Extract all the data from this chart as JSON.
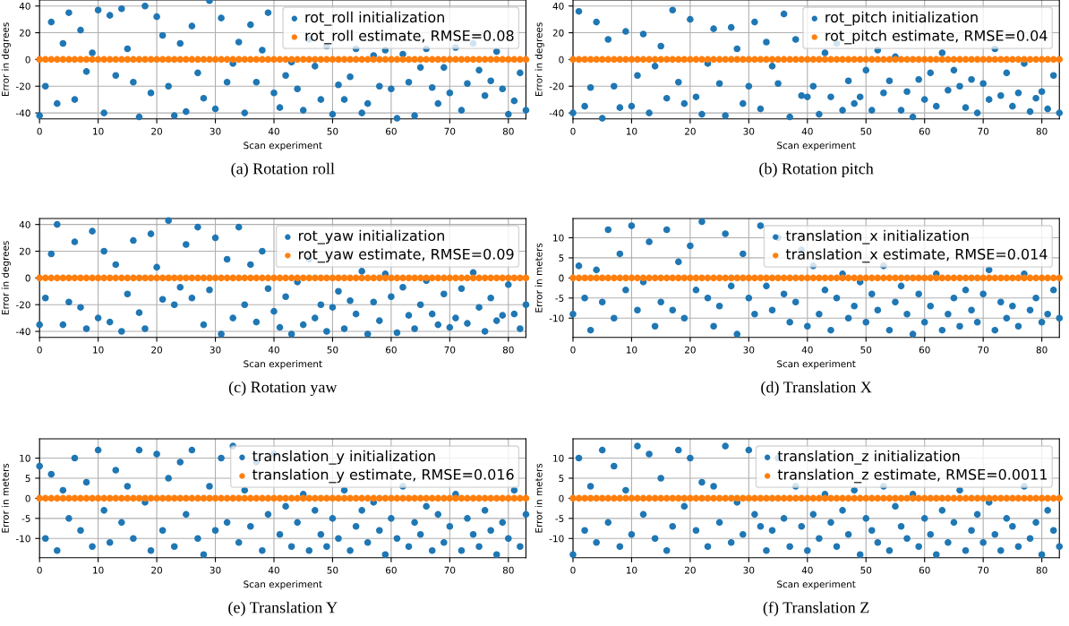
{
  "chart_data": [
    {
      "type": "scatter",
      "xlabel": "Scan experiment",
      "ylabel": "Error in degrees",
      "xlim": [
        0,
        83
      ],
      "ylim": [
        -44.5,
        44.5
      ],
      "xticks": [
        0,
        10,
        20,
        30,
        40,
        50,
        60,
        70,
        80
      ],
      "yticks": [
        -40,
        -20,
        0,
        20,
        40
      ],
      "grid": true,
      "legend": "top right",
      "marker": "circle",
      "annotations": [
        "(a) Rotation roll"
      ],
      "x": [
        0,
        1,
        2,
        3,
        4,
        5,
        6,
        7,
        8,
        9,
        10,
        11,
        12,
        13,
        14,
        15,
        16,
        17,
        18,
        19,
        20,
        21,
        22,
        23,
        24,
        25,
        26,
        27,
        28,
        29,
        30,
        31,
        32,
        33,
        34,
        35,
        36,
        37,
        38,
        39,
        40,
        41,
        42,
        43,
        44,
        45,
        46,
        47,
        48,
        49,
        50,
        51,
        52,
        53,
        54,
        55,
        56,
        57,
        58,
        59,
        60,
        61,
        62,
        63,
        64,
        65,
        66,
        67,
        68,
        69,
        70,
        71,
        72,
        73,
        74,
        75,
        76,
        77,
        78,
        79,
        80,
        81,
        82,
        83
      ],
      "series": [
        {
          "name": "rot_roll initialization",
          "color": "#1f77b4",
          "values": [
            -42,
            -20,
            28,
            -33,
            12,
            35,
            -30,
            22,
            -9,
            5,
            37,
            -40,
            33,
            -12,
            38,
            8,
            -17,
            -43,
            40,
            -25,
            32,
            18,
            -20,
            -42,
            12,
            -39,
            25,
            -10,
            -29,
            44,
            -37,
            31,
            -17,
            -3,
            13,
            -40,
            26,
            -17,
            7,
            35,
            -25,
            -36,
            -12,
            -2,
            -22,
            -38,
            15,
            -5,
            -30,
            10,
            -41,
            -19,
            -30,
            -13,
            8,
            -40,
            -33,
            3,
            -20,
            7,
            -22,
            -44,
            4,
            -17,
            -42,
            -6,
            8,
            -21,
            -33,
            -6,
            -25,
            9,
            -38,
            -18,
            12,
            -8,
            -27,
            -16,
            6,
            -22,
            -41,
            -31,
            -10,
            -38
          ]
        },
        {
          "name": "rot_roll estimate, RMSE=0.08",
          "color": "#ff7f0e",
          "values": [
            0,
            0,
            0,
            0,
            0,
            0,
            0,
            0,
            0,
            0,
            0,
            0,
            0,
            0,
            0,
            0,
            0,
            0,
            0,
            0,
            0,
            0,
            0,
            0,
            0,
            0,
            0,
            0,
            0,
            0,
            0,
            0,
            0,
            0,
            0,
            0,
            0,
            0,
            0,
            0,
            0,
            0,
            0,
            0,
            0,
            0,
            0,
            0,
            0,
            0,
            0,
            0,
            0,
            0,
            0,
            0,
            0,
            0,
            0,
            0,
            0,
            0,
            0,
            0,
            0,
            0,
            0,
            0,
            0,
            0,
            0,
            0,
            0,
            0,
            0,
            0,
            0,
            0,
            0,
            0,
            0,
            0,
            0,
            0
          ]
        }
      ]
    },
    {
      "type": "scatter",
      "xlabel": "Scan experiment",
      "ylabel": "Error in degrees",
      "xlim": [
        0,
        83
      ],
      "ylim": [
        -44.5,
        44.5
      ],
      "xticks": [
        0,
        10,
        20,
        30,
        40,
        50,
        60,
        70,
        80
      ],
      "yticks": [
        -40,
        -20,
        0,
        20,
        40
      ],
      "grid": true,
      "legend": "top right",
      "marker": "circle",
      "annotations": [
        "(b) Rotation pitch"
      ],
      "x": [
        0,
        1,
        2,
        3,
        4,
        5,
        6,
        7,
        8,
        9,
        10,
        11,
        12,
        13,
        14,
        15,
        16,
        17,
        18,
        19,
        20,
        21,
        22,
        23,
        24,
        25,
        26,
        27,
        28,
        29,
        30,
        31,
        32,
        33,
        34,
        35,
        36,
        37,
        38,
        39,
        40,
        41,
        42,
        43,
        44,
        45,
        46,
        47,
        48,
        49,
        50,
        51,
        52,
        53,
        54,
        55,
        56,
        57,
        58,
        59,
        60,
        61,
        62,
        63,
        64,
        65,
        66,
        67,
        68,
        69,
        70,
        71,
        72,
        73,
        74,
        75,
        76,
        77,
        78,
        79,
        80,
        81,
        82,
        83
      ],
      "series": [
        {
          "name": "rot_pitch initialization",
          "color": "#1f77b4",
          "values": [
            -40,
            36,
            -35,
            -21,
            28,
            -44,
            15,
            -20,
            -36,
            21,
            -35,
            -12,
            19,
            -40,
            -5,
            10,
            -29,
            37,
            -17,
            -33,
            30,
            -28,
            -41,
            -3,
            23,
            -18,
            -42,
            24,
            8,
            -33,
            -20,
            28,
            -37,
            13,
            -5,
            -18,
            34,
            -43,
            15,
            -27,
            -28,
            -20,
            -41,
            5,
            -28,
            12,
            -38,
            -16,
            -33,
            -28,
            -8,
            -38,
            7,
            -25,
            -16,
            2,
            -38,
            -24,
            -43,
            -15,
            -30,
            -10,
            -35,
            5,
            -23,
            -8,
            -20,
            -36,
            -15,
            -40,
            -18,
            -30,
            8,
            -27,
            -10,
            -35,
            -25,
            -3,
            -39,
            -29,
            -24,
            -37,
            -12,
            -40
          ]
        },
        {
          "name": "rot_pitch estimate, RMSE=0.04",
          "color": "#ff7f0e",
          "values": [
            0,
            0,
            0,
            0,
            0,
            0,
            0,
            0,
            0,
            0,
            0,
            0,
            0,
            0,
            0,
            0,
            0,
            0,
            0,
            0,
            0,
            0,
            0,
            0,
            0,
            0,
            0,
            0,
            0,
            0,
            0,
            0,
            0,
            0,
            0,
            0,
            0,
            0,
            0,
            0,
            0,
            0,
            0,
            0,
            0,
            0,
            0,
            0,
            0,
            0,
            0,
            0,
            0,
            0,
            0,
            0,
            0,
            0,
            0,
            0,
            0,
            0,
            0,
            0,
            0,
            0,
            0,
            0,
            0,
            0,
            0,
            0,
            0,
            0,
            0,
            0,
            0,
            0,
            0,
            0,
            0,
            0,
            0,
            0
          ]
        }
      ]
    },
    {
      "type": "scatter",
      "xlabel": "Scan experiment",
      "ylabel": "Error in degrees",
      "xlim": [
        0,
        83
      ],
      "ylim": [
        -44.5,
        44.5
      ],
      "xticks": [
        0,
        10,
        20,
        30,
        40,
        50,
        60,
        70,
        80
      ],
      "yticks": [
        -40,
        -20,
        0,
        20,
        40
      ],
      "grid": true,
      "legend": "top right",
      "marker": "circle",
      "annotations": [
        "(c) Rotation yaw"
      ],
      "x": [
        0,
        1,
        2,
        3,
        4,
        5,
        6,
        7,
        8,
        9,
        10,
        11,
        12,
        13,
        14,
        15,
        16,
        17,
        18,
        19,
        20,
        21,
        22,
        23,
        24,
        25,
        26,
        27,
        28,
        29,
        30,
        31,
        32,
        33,
        34,
        35,
        36,
        37,
        38,
        39,
        40,
        41,
        42,
        43,
        44,
        45,
        46,
        47,
        48,
        49,
        50,
        51,
        52,
        53,
        54,
        55,
        56,
        57,
        58,
        59,
        60,
        61,
        62,
        63,
        64,
        65,
        66,
        67,
        68,
        69,
        70,
        71,
        72,
        73,
        74,
        75,
        76,
        77,
        78,
        79,
        80,
        81,
        82,
        83
      ],
      "series": [
        {
          "name": "rot_yaw initialization",
          "color": "#1f77b4",
          "values": [
            -35,
            -15,
            18,
            40,
            -35,
            -18,
            27,
            -22,
            -38,
            35,
            -30,
            20,
            -33,
            10,
            -40,
            -12,
            28,
            -26,
            -38,
            33,
            8,
            -16,
            43,
            -20,
            -7,
            25,
            -15,
            38,
            -35,
            -9,
            30,
            -42,
            14,
            -30,
            38,
            -20,
            10,
            -33,
            20,
            -8,
            -25,
            -37,
            -14,
            -42,
            -3,
            -35,
            14,
            -30,
            -20,
            -40,
            -22,
            -10,
            -38,
            -17,
            -27,
            5,
            -42,
            -18,
            -32,
            3,
            -14,
            -41,
            -7,
            -28,
            -38,
            -20,
            -2,
            -27,
            -35,
            -12,
            -37,
            -30,
            -8,
            -34,
            4,
            -22,
            -40,
            -15,
            -32,
            -28,
            -5,
            -27,
            -38,
            -20
          ]
        },
        {
          "name": "rot_yaw estimate, RMSE=0.09",
          "color": "#ff7f0e",
          "values": [
            0,
            0,
            0,
            0,
            0,
            0,
            0,
            0,
            0,
            0,
            0,
            0,
            0,
            0,
            0,
            0,
            0,
            0,
            0,
            0,
            0,
            0,
            0,
            0,
            0,
            0,
            0,
            0,
            0,
            0,
            0,
            0,
            0,
            0,
            0,
            0,
            0,
            0,
            0,
            0,
            0,
            0,
            0,
            0,
            0,
            0,
            0,
            0,
            0,
            0,
            0,
            0,
            0,
            0,
            0,
            0,
            0,
            0,
            0,
            0,
            0,
            0,
            0,
            0,
            0,
            0,
            0,
            0,
            0,
            0,
            0,
            0,
            0,
            0,
            0,
            0,
            0,
            0,
            0,
            0,
            0,
            0,
            0,
            0
          ]
        }
      ]
    },
    {
      "type": "scatter",
      "xlabel": "Scan experiment",
      "ylabel": "Error in meters",
      "xlim": [
        0,
        83
      ],
      "ylim": [
        -14.8,
        14.8
      ],
      "xticks": [
        0,
        10,
        20,
        30,
        40,
        50,
        60,
        70,
        80
      ],
      "yticks": [
        -10,
        -5,
        0,
        5,
        10
      ],
      "grid": true,
      "legend": "top right",
      "marker": "circle",
      "annotations": [
        "(d) Translation X"
      ],
      "x": [
        0,
        1,
        2,
        3,
        4,
        5,
        6,
        7,
        8,
        9,
        10,
        11,
        12,
        13,
        14,
        15,
        16,
        17,
        18,
        19,
        20,
        21,
        22,
        23,
        24,
        25,
        26,
        27,
        28,
        29,
        30,
        31,
        32,
        33,
        34,
        35,
        36,
        37,
        38,
        39,
        40,
        41,
        42,
        43,
        44,
        45,
        46,
        47,
        48,
        49,
        50,
        51,
        52,
        53,
        54,
        55,
        56,
        57,
        58,
        59,
        60,
        61,
        62,
        63,
        64,
        65,
        66,
        67,
        68,
        69,
        70,
        71,
        72,
        73,
        74,
        75,
        76,
        77,
        78,
        79,
        80,
        81,
        82,
        83
      ],
      "series": [
        {
          "name": "translation_x initialization",
          "color": "#1f77b4",
          "values": [
            -9,
            3,
            -5,
            -13,
            2,
            -6,
            12,
            -10,
            6,
            -3,
            13,
            -8,
            -1,
            9,
            -12,
            -6,
            12,
            -8,
            4,
            -10,
            8,
            -3,
            14,
            -5,
            -12,
            -7,
            11,
            -2,
            -14,
            6,
            -5,
            -9,
            13,
            -2,
            -8,
            10,
            -4,
            -11,
            -6,
            7,
            -12,
            3,
            -9,
            -3,
            -13,
            -5,
            1,
            -10,
            -7,
            -1,
            -11,
            -4,
            -8,
            3,
            -13,
            -6,
            -2,
            -9,
            -14,
            -4,
            -11,
            -7,
            1,
            -13,
            -9,
            -5,
            -12,
            -3,
            -8,
            -11,
            -4,
            2,
            -13,
            -6,
            -10,
            -7,
            -12,
            1,
            -8,
            -5,
            -11,
            -9,
            -3,
            -10
          ]
        },
        {
          "name": "translation_x estimate, RMSE=0.014",
          "color": "#ff7f0e",
          "values": [
            0,
            0,
            0,
            0,
            0,
            0,
            0,
            0,
            0,
            0,
            0,
            0,
            0,
            0,
            0,
            0,
            0,
            0,
            0,
            0,
            0,
            0,
            0,
            0,
            0,
            0,
            0,
            0,
            0,
            0,
            0,
            0,
            0,
            0,
            0,
            0,
            0,
            0,
            0,
            0,
            0,
            0,
            0,
            0,
            0,
            0,
            0,
            0,
            0,
            0,
            0,
            0,
            0,
            0,
            0,
            0,
            0,
            0,
            0,
            0,
            0,
            0,
            0,
            0,
            0,
            0,
            0,
            0,
            0,
            0,
            0,
            0,
            0,
            0,
            0,
            0,
            0,
            0,
            0,
            0,
            0,
            0,
            0,
            0
          ]
        }
      ]
    },
    {
      "type": "scatter",
      "xlabel": "Scan experiment",
      "ylabel": "Error in meters",
      "xlim": [
        0,
        83
      ],
      "ylim": [
        -14.8,
        14.8
      ],
      "xticks": [
        0,
        10,
        20,
        30,
        40,
        50,
        60,
        70,
        80
      ],
      "yticks": [
        -10,
        -5,
        0,
        5,
        10
      ],
      "grid": true,
      "legend": "top right",
      "marker": "circle",
      "annotations": [
        "(e) Translation Y"
      ],
      "x": [
        0,
        1,
        2,
        3,
        4,
        5,
        6,
        7,
        8,
        9,
        10,
        11,
        12,
        13,
        14,
        15,
        16,
        17,
        18,
        19,
        20,
        21,
        22,
        23,
        24,
        25,
        26,
        27,
        28,
        29,
        30,
        31,
        32,
        33,
        34,
        35,
        36,
        37,
        38,
        39,
        40,
        41,
        42,
        43,
        44,
        45,
        46,
        47,
        48,
        49,
        50,
        51,
        52,
        53,
        54,
        55,
        56,
        57,
        58,
        59,
        60,
        61,
        62,
        63,
        64,
        65,
        66,
        67,
        68,
        69,
        70,
        71,
        72,
        73,
        74,
        75,
        76,
        77,
        78,
        79,
        80,
        81,
        82,
        83
      ],
      "series": [
        {
          "name": "translation_y initialization",
          "color": "#1f77b4",
          "values": [
            8,
            -10,
            6,
            -13,
            2,
            -5,
            10,
            -8,
            4,
            -12,
            12,
            -3,
            -11,
            7,
            -6,
            3,
            -10,
            12,
            -1,
            -13,
            11,
            -8,
            5,
            -12,
            9,
            -4,
            12,
            -10,
            -14,
            3,
            -8,
            10,
            -6,
            13,
            -11,
            2,
            -7,
            9,
            -13,
            -4,
            11,
            -9,
            -2,
            -12,
            -6,
            1,
            -13,
            -3,
            -9,
            -12,
            -5,
            -10,
            2,
            -13,
            -7,
            -3,
            -11,
            -1,
            -8,
            -14,
            -5,
            -10,
            3,
            -12,
            -6,
            -9,
            -2,
            -13,
            -4,
            -11,
            -7,
            1,
            -13,
            -5,
            -9,
            -12,
            -3,
            -8,
            -14,
            -6,
            -10,
            2,
            -12,
            -4
          ]
        },
        {
          "name": "translation_y estimate, RMSE=0.016",
          "color": "#ff7f0e",
          "values": [
            0,
            0,
            0,
            0,
            0,
            0,
            0,
            0,
            0,
            0,
            0,
            0,
            0,
            0,
            0,
            0,
            0,
            0,
            0,
            0,
            0,
            0,
            0,
            0,
            0,
            0,
            0,
            0,
            0,
            0,
            0,
            0,
            0,
            0,
            0,
            0,
            0,
            0,
            0,
            0,
            0,
            0,
            0,
            0,
            0,
            0,
            0,
            0,
            0,
            0,
            0,
            0,
            0,
            0,
            0,
            0,
            0,
            0,
            0,
            0,
            0,
            0,
            0,
            0,
            0,
            0,
            0,
            0,
            0,
            0,
            0,
            0,
            0,
            0,
            0,
            0,
            0,
            0,
            0,
            0,
            0,
            0,
            0,
            0
          ]
        }
      ]
    },
    {
      "type": "scatter",
      "xlabel": "Scan experiment",
      "ylabel": "Error in meters",
      "xlim": [
        0,
        83
      ],
      "ylim": [
        -14.8,
        14.8
      ],
      "xticks": [
        0,
        10,
        20,
        30,
        40,
        50,
        60,
        70,
        80
      ],
      "yticks": [
        -10,
        -5,
        0,
        5,
        10
      ],
      "grid": true,
      "legend": "top right",
      "marker": "circle",
      "annotations": [
        "(f) Translation Z"
      ],
      "x": [
        0,
        1,
        2,
        3,
        4,
        5,
        6,
        7,
        8,
        9,
        10,
        11,
        12,
        13,
        14,
        15,
        16,
        17,
        18,
        19,
        20,
        21,
        22,
        23,
        24,
        25,
        26,
        27,
        28,
        29,
        30,
        31,
        32,
        33,
        34,
        35,
        36,
        37,
        38,
        39,
        40,
        41,
        42,
        43,
        44,
        45,
        46,
        47,
        48,
        49,
        50,
        51,
        52,
        53,
        54,
        55,
        56,
        57,
        58,
        59,
        60,
        61,
        62,
        63,
        64,
        65,
        66,
        67,
        68,
        69,
        70,
        71,
        72,
        73,
        74,
        75,
        76,
        77,
        78,
        79,
        80,
        81,
        82,
        83
      ],
      "series": [
        {
          "name": "translation_z initialization",
          "color": "#1f77b4",
          "values": [
            -14,
            10,
            -8,
            3,
            -11,
            12,
            -6,
            8,
            -12,
            2,
            -9,
            13,
            -4,
            11,
            -10,
            5,
            -13,
            -7,
            12,
            -2,
            10,
            -8,
            4,
            -12,
            3,
            -6,
            13,
            -11,
            -1,
            -9,
            12,
            -4,
            -7,
            -13,
            -8,
            10,
            -5,
            -12,
            3,
            -7,
            -13,
            -4,
            -10,
            1,
            -6,
            -12,
            -3,
            -9,
            2,
            -14,
            -5,
            -8,
            -11,
            3,
            -13,
            -2,
            -7,
            -10,
            1,
            -12,
            -5,
            -9,
            -14,
            -3,
            -11,
            -6,
            2,
            -13,
            -8,
            -4,
            -11,
            -1,
            -9,
            -13,
            -5,
            -7,
            -12,
            3,
            -10,
            -6,
            -14,
            -3,
            -8,
            -12
          ]
        },
        {
          "name": "translation_z estimate, RMSE=0.0011",
          "color": "#ff7f0e",
          "values": [
            0,
            0,
            0,
            0,
            0,
            0,
            0,
            0,
            0,
            0,
            0,
            0,
            0,
            0,
            0,
            0,
            0,
            0,
            0,
            0,
            0,
            0,
            0,
            0,
            0,
            0,
            0,
            0,
            0,
            0,
            0,
            0,
            0,
            0,
            0,
            0,
            0,
            0,
            0,
            0,
            0,
            0,
            0,
            0,
            0,
            0,
            0,
            0,
            0,
            0,
            0,
            0,
            0,
            0,
            0,
            0,
            0,
            0,
            0,
            0,
            0,
            0,
            0,
            0,
            0,
            0,
            0,
            0,
            0,
            0,
            0,
            0,
            0,
            0,
            0,
            0,
            0,
            0,
            0,
            0,
            0,
            0,
            0,
            0
          ]
        }
      ]
    }
  ]
}
